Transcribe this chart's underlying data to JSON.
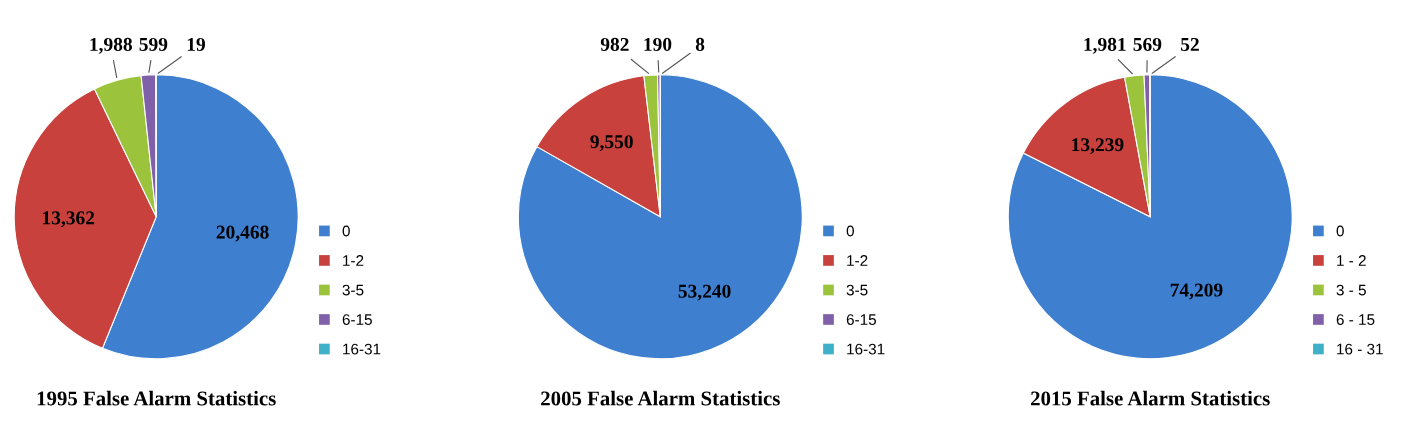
{
  "chart_data": [
    {
      "type": "pie",
      "title": "1995 False Alarm Statistics",
      "categories": [
        "0",
        "1-2",
        "3-5",
        "6-15",
        "16-31"
      ],
      "values": [
        20468,
        13362,
        1988,
        599,
        19
      ],
      "colors": [
        "#3f7fd0",
        "#c8413c",
        "#9bc33c",
        "#8060a8",
        "#3eb0c8"
      ],
      "value_labels": [
        "20,468",
        "13,362",
        "1,988",
        "599",
        "19"
      ],
      "legend": "right"
    },
    {
      "type": "pie",
      "title": "2005 False Alarm Statistics",
      "categories": [
        "0",
        "1-2",
        "3-5",
        "6-15",
        "16-31"
      ],
      "values": [
        53240,
        9550,
        982,
        190,
        8
      ],
      "colors": [
        "#3f7fd0",
        "#c8413c",
        "#9bc33c",
        "#8060a8",
        "#3eb0c8"
      ],
      "value_labels": [
        "53,240",
        "9,550",
        "982",
        "190",
        "8"
      ],
      "legend": "right"
    },
    {
      "type": "pie",
      "title": "2015 False Alarm Statistics",
      "categories": [
        "0",
        "1 - 2",
        "3 - 5",
        "6 - 15",
        "16 - 31"
      ],
      "values": [
        74209,
        13239,
        1981,
        569,
        52
      ],
      "colors": [
        "#3f7fd0",
        "#c8413c",
        "#9bc33c",
        "#8060a8",
        "#3eb0c8"
      ],
      "value_labels": [
        "74,209",
        "13,239",
        "1,981",
        "569",
        "52"
      ],
      "legend": "right"
    }
  ]
}
